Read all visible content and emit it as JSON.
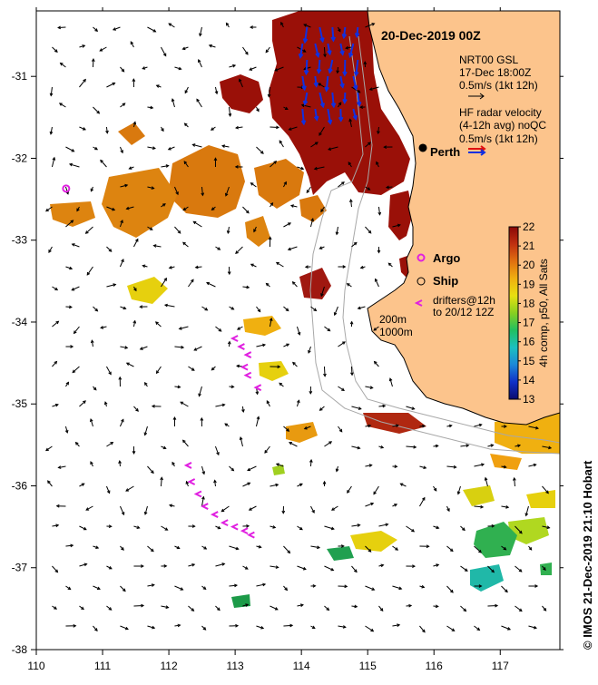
{
  "title": "20-Dec-2019 00Z",
  "map": {
    "lon_min": 110,
    "lon_max": 117.9,
    "lat_min": -38,
    "lat_max": -30.2,
    "x_ticks": [
      110,
      111,
      112,
      113,
      114,
      115,
      116,
      117
    ],
    "y_ticks": [
      -31,
      -32,
      -33,
      -34,
      -35,
      -36,
      -37,
      -38
    ],
    "x_tick_labels": [
      "110",
      "111",
      "112",
      "113",
      "114",
      "115",
      "116",
      "117"
    ],
    "y_tick_labels": [
      "-31",
      "-32",
      "-33",
      "-34",
      "-35",
      "-36",
      "-37",
      "-38"
    ]
  },
  "legend": {
    "current_model": "NRT00 GSL",
    "current_time": "17-Dec 18:00Z",
    "current_scale": "0.5m/s (1kt 12h)",
    "hf_line1": "HF radar velocity",
    "hf_line2": "(4-12h avg) noQC",
    "hf_scale": "0.5m/s (1kt 12h)",
    "argo": "Argo",
    "ship": "Ship",
    "drifters_line1": "drifters@12h",
    "drifters_line2": "to 20/12 12Z",
    "isobath_200": "200m",
    "isobath_1000": "1000m"
  },
  "places": {
    "perth": "Perth"
  },
  "colorbar": {
    "label": "4h comp, p50, All Sats",
    "min": 13,
    "max": 22,
    "ticks": [
      "22",
      "21",
      "20",
      "19",
      "18",
      "17",
      "16",
      "15",
      "14",
      "13"
    ],
    "colors": [
      "#0b0b6e",
      "#1030c8",
      "#1c88d8",
      "#1cc0c0",
      "#20c060",
      "#88d020",
      "#e8e010",
      "#f0b010",
      "#e07010",
      "#c03010",
      "#8a0808"
    ]
  },
  "credit": "© IMOS 21-Dec-2019 21:10 Hobart",
  "colors": {
    "land": "#fcc48c",
    "hf_radar": "#1030e0",
    "hf_radar_alt": "#e01010",
    "drifter": "#e020e0",
    "isobath": "#a8a8a8"
  },
  "observations": {
    "argo": [
      {
        "lon": 110.45,
        "lat": -32.37
      }
    ],
    "perth": {
      "lon": 115.86,
      "lat": -31.95
    },
    "drifters": [
      {
        "lon": 113.0,
        "lat": -34.2
      },
      {
        "lon": 113.1,
        "lat": -34.3
      },
      {
        "lon": 113.2,
        "lat": -34.4
      },
      {
        "lon": 113.15,
        "lat": -34.55
      },
      {
        "lon": 113.2,
        "lat": -34.65
      },
      {
        "lon": 113.35,
        "lat": -34.8
      },
      {
        "lon": 112.3,
        "lat": -35.75
      },
      {
        "lon": 112.35,
        "lat": -35.95
      },
      {
        "lon": 112.45,
        "lat": -36.1
      },
      {
        "lon": 112.55,
        "lat": -36.25
      },
      {
        "lon": 112.7,
        "lat": -36.35
      },
      {
        "lon": 112.85,
        "lat": -36.45
      },
      {
        "lon": 113.0,
        "lat": -36.5
      },
      {
        "lon": 113.15,
        "lat": -36.55
      },
      {
        "lon": 113.25,
        "lat": -36.6
      }
    ]
  }
}
